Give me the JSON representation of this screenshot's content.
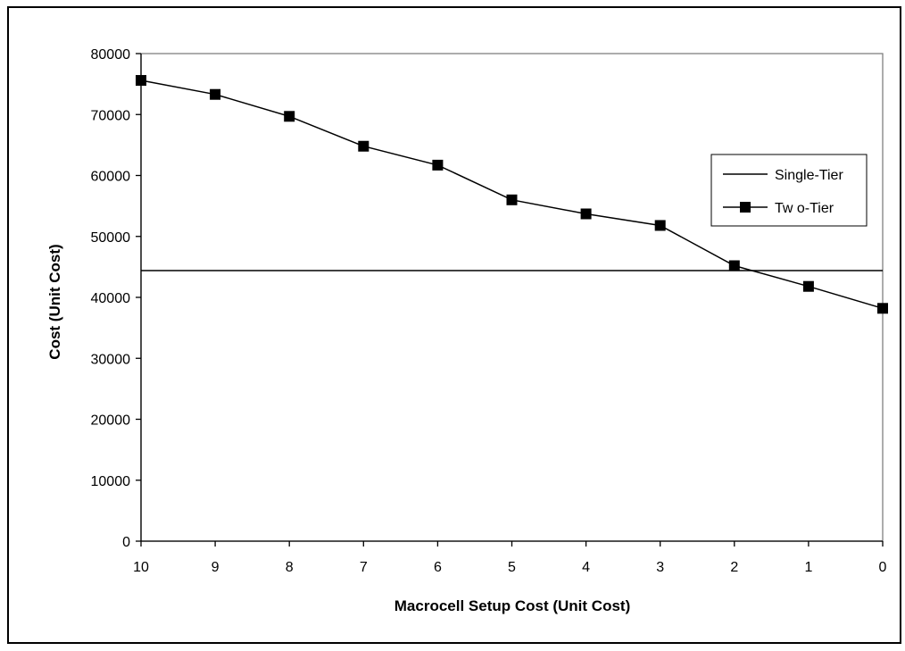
{
  "chart_data": {
    "type": "line",
    "title": "",
    "xlabel": "Macrocell Setup Cost (Unit Cost)",
    "ylabel": "Cost (Unit Cost)",
    "x": [
      10,
      9,
      8,
      7,
      6,
      5,
      4,
      3,
      2,
      1,
      0
    ],
    "x_tick_labels": [
      "10",
      "9",
      "8",
      "7",
      "6",
      "5",
      "4",
      "3",
      "2",
      "1",
      "0"
    ],
    "x_reversed": true,
    "ylim": [
      0,
      80000
    ],
    "y_tick_labels": [
      "0",
      "10000",
      "20000",
      "30000",
      "40000",
      "50000",
      "60000",
      "70000",
      "80000"
    ],
    "y_ticks": [
      0,
      10000,
      20000,
      30000,
      40000,
      50000,
      60000,
      70000,
      80000
    ],
    "grid": false,
    "legend_position": "right",
    "series": [
      {
        "name": "Single-Tier",
        "marker": "none",
        "color": "#000000",
        "values": [
          44400,
          44400,
          44400,
          44400,
          44400,
          44400,
          44400,
          44400,
          44400,
          44400,
          44400
        ]
      },
      {
        "name": "Tw o-Tier",
        "marker": "square",
        "color": "#000000",
        "values": [
          75600,
          73300,
          69700,
          64800,
          61700,
          56000,
          53700,
          51800,
          45200,
          41800,
          38200
        ]
      }
    ]
  }
}
